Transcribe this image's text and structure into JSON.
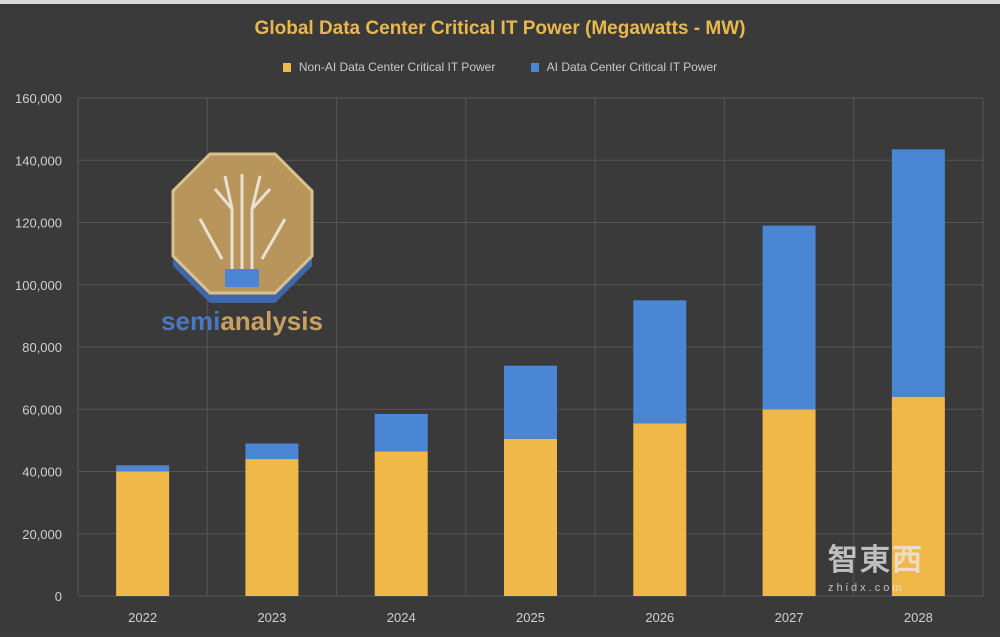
{
  "chart_data": {
    "type": "bar",
    "stacked": true,
    "title": "Global Data Center Critical IT Power (Megawatts - MW)",
    "xlabel": "",
    "ylabel": "",
    "categories": [
      "2022",
      "2023",
      "2024",
      "2025",
      "2026",
      "2027",
      "2028"
    ],
    "series": [
      {
        "name": "Non-AI Data Center Critical IT Power",
        "color": "#f0b849",
        "values": [
          40000,
          44000,
          46500,
          50500,
          55500,
          60000,
          64000
        ]
      },
      {
        "name": "AI Data Center Critical IT Power",
        "color": "#4a86d4",
        "values": [
          2000,
          5000,
          12000,
          23500,
          39500,
          59000,
          79500
        ]
      }
    ],
    "ylim": [
      0,
      160000
    ],
    "yticks": [
      "0",
      "20,000",
      "40,000",
      "60,000",
      "80,000",
      "100,000",
      "120,000",
      "140,000",
      "160,000"
    ],
    "grid": true,
    "legend": "top",
    "background": "#3a3a3a"
  },
  "logo": {
    "text": "semianalysis"
  },
  "watermark": {
    "text": "智東西",
    "sub": "zhidx.com"
  }
}
